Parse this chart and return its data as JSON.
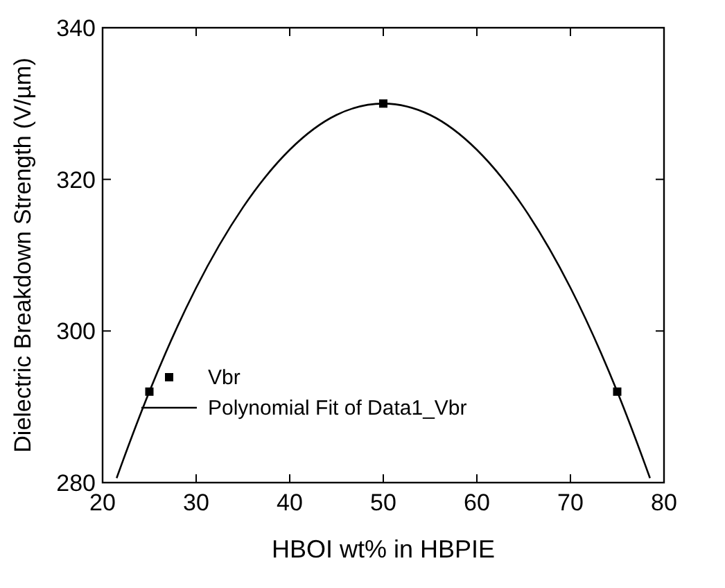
{
  "chart_data": {
    "type": "scatter",
    "xlabel": "HBOI wt% in HBPIE",
    "ylabel": "Dielectric Breakdown Strength (V/µm)",
    "xlim": [
      20,
      80
    ],
    "ylim": [
      280,
      340
    ],
    "xticks": [
      20,
      30,
      40,
      50,
      60,
      70,
      80
    ],
    "yticks": [
      280,
      300,
      320,
      340
    ],
    "grid": false,
    "legend": "bottom",
    "series": [
      {
        "name": "Vbr",
        "marker": "square",
        "color": "#000000",
        "x": [
          25,
          50,
          75
        ],
        "values": [
          292,
          330,
          292
        ]
      },
      {
        "name": "Polynomial Fit of Data1_Vbr",
        "type": "line",
        "marker": "none",
        "line_style": "solid",
        "color": "#000000",
        "x": [
          21.5,
          22,
          25,
          30,
          35,
          40,
          45,
          50,
          55,
          60,
          65,
          70,
          75,
          78,
          78.5
        ],
        "values": [
          280.6,
          282.3,
          292,
          305.7,
          316.3,
          323.9,
          328.5,
          330,
          328.5,
          323.9,
          316.3,
          305.7,
          292,
          282.3,
          280.6
        ]
      }
    ]
  }
}
